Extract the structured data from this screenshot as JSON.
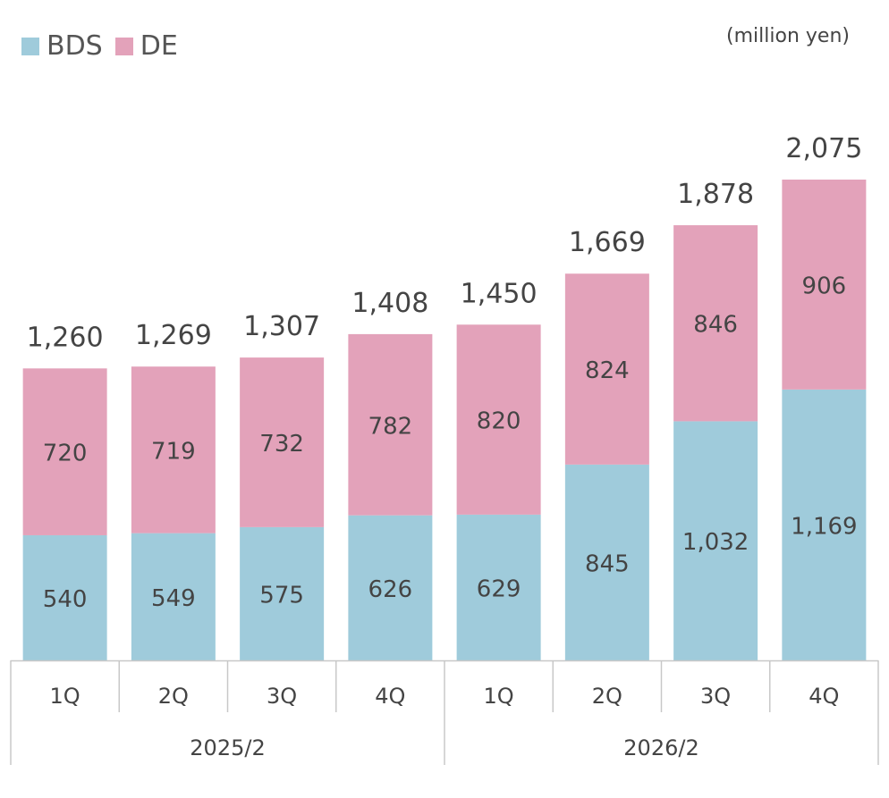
{
  "legend": {
    "bds": "BDS",
    "de": "DE"
  },
  "unit": "(million yen)",
  "colors": {
    "bds": "#9fcbdb",
    "de": "#e3a2ba",
    "axis": "#c8c8c8",
    "text": "#444444"
  },
  "chart_data": {
    "type": "bar",
    "stacked": true,
    "categories": [
      "1Q",
      "2Q",
      "3Q",
      "4Q",
      "1Q",
      "2Q",
      "3Q",
      "4Q"
    ],
    "groups": [
      {
        "label": "2025/2",
        "categories": [
          "1Q",
          "2Q",
          "3Q",
          "4Q"
        ]
      },
      {
        "label": "2026/2",
        "categories": [
          "1Q",
          "2Q",
          "3Q",
          "4Q"
        ]
      }
    ],
    "series": [
      {
        "name": "BDS",
        "values": [
          540,
          549,
          575,
          626,
          629,
          845,
          1032,
          1169
        ]
      },
      {
        "name": "DE",
        "values": [
          720,
          719,
          732,
          782,
          820,
          824,
          846,
          906
        ]
      }
    ],
    "totals": [
      "1,260",
      "1,269",
      "1,307",
      "1,408",
      "1,450",
      "1,669",
      "1,878",
      "2,075"
    ],
    "value_labels": {
      "BDS": [
        "540",
        "549",
        "575",
        "626",
        "629",
        "845",
        "1,032",
        "1,169"
      ],
      "DE": [
        "720",
        "719",
        "732",
        "782",
        "820",
        "824",
        "846",
        "906"
      ]
    },
    "legend_position": "top-left",
    "grid": false
  }
}
